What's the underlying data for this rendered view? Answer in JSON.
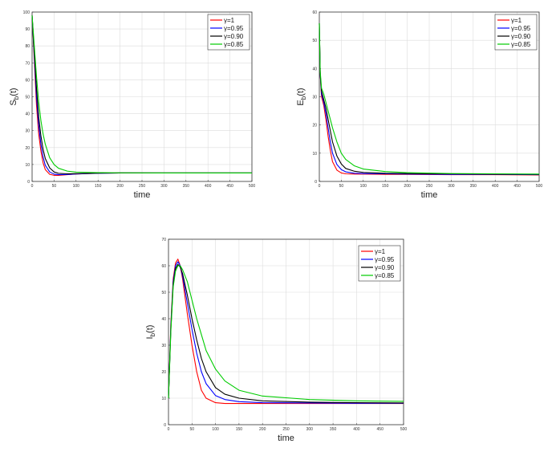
{
  "chart_data": [
    {
      "type": "line",
      "ylabel": "S_b(t)",
      "ylabel_main": "S",
      "ylabel_sub": "b",
      "ylabel_tail": "(t)",
      "xlabel": "time",
      "xlim": [
        0,
        500
      ],
      "ylim": [
        0,
        100
      ],
      "xticks": [
        "0",
        "50",
        "100",
        "150",
        "200",
        "250",
        "300",
        "350",
        "400",
        "450",
        "500"
      ],
      "yticks": [
        "0",
        "10",
        "20",
        "30",
        "40",
        "50",
        "60",
        "70",
        "80",
        "90",
        "100"
      ],
      "grid": true,
      "legend": "top-right",
      "series": [
        {
          "name": "γ=1",
          "color": "#ff0000",
          "x": [
            0,
            5,
            10,
            15,
            20,
            25,
            30,
            40,
            50,
            60,
            80,
            100,
            150,
            200,
            300,
            400,
            500
          ],
          "y": [
            98,
            72,
            45,
            28,
            18,
            11,
            7,
            4.2,
            3.6,
            3.6,
            4.0,
            4.4,
            4.9,
            5.0,
            5.0,
            5.0,
            5.0
          ]
        },
        {
          "name": "γ=0.95",
          "color": "#0000ff",
          "x": [
            0,
            5,
            10,
            15,
            20,
            25,
            30,
            40,
            50,
            60,
            80,
            100,
            150,
            200,
            300,
            400,
            500
          ],
          "y": [
            98,
            74,
            50,
            33,
            22,
            14.5,
            9.5,
            5.6,
            4.3,
            4.0,
            4.1,
            4.4,
            4.8,
            5.0,
            5.0,
            5.0,
            5.0
          ]
        },
        {
          "name": "γ=0.90",
          "color": "#000000",
          "x": [
            0,
            5,
            10,
            15,
            20,
            25,
            30,
            40,
            50,
            60,
            80,
            100,
            150,
            200,
            300,
            400,
            500
          ],
          "y": [
            98,
            76,
            55,
            38,
            27,
            19,
            13.5,
            8,
            5.6,
            4.8,
            4.5,
            4.6,
            4.9,
            5.0,
            5.0,
            5.0,
            5.0
          ]
        },
        {
          "name": "γ=0.85",
          "color": "#00cc00",
          "x": [
            0,
            5,
            10,
            15,
            20,
            25,
            30,
            40,
            50,
            60,
            80,
            100,
            150,
            200,
            300,
            400,
            500
          ],
          "y": [
            98,
            80,
            62,
            47,
            36,
            28,
            22,
            14,
            10,
            7.8,
            6.1,
            5.5,
            5.2,
            5.1,
            5.0,
            5.0,
            5.0
          ]
        }
      ]
    },
    {
      "type": "line",
      "ylabel": "E_b(t)",
      "ylabel_main": "E",
      "ylabel_sub": "b",
      "ylabel_tail": "(t)",
      "xlabel": "time",
      "xlim": [
        0,
        500
      ],
      "ylim": [
        0,
        60
      ],
      "xticks": [
        "0",
        "50",
        "100",
        "150",
        "200",
        "250",
        "300",
        "350",
        "400",
        "450",
        "500"
      ],
      "yticks": [
        "0",
        "10",
        "20",
        "30",
        "40",
        "50",
        "60"
      ],
      "grid": true,
      "legend": "top-right",
      "series": [
        {
          "name": "γ=1",
          "color": "#ff0000",
          "x": [
            0,
            2,
            5,
            10,
            15,
            20,
            25,
            30,
            40,
            50,
            60,
            80,
            100,
            150,
            200,
            300,
            400,
            500
          ],
          "y": [
            56,
            38,
            30,
            27,
            22,
            16,
            11,
            7,
            4,
            3,
            2.7,
            2.6,
            2.6,
            2.5,
            2.5,
            2.4,
            2.4,
            2.3
          ]
        },
        {
          "name": "γ=0.95",
          "color": "#0000ff",
          "x": [
            0,
            2,
            5,
            10,
            15,
            20,
            25,
            30,
            40,
            50,
            60,
            80,
            100,
            150,
            200,
            300,
            400,
            500
          ],
          "y": [
            56,
            38,
            31,
            28,
            24,
            19,
            14,
            10,
            6,
            4.2,
            3.4,
            2.9,
            2.8,
            2.7,
            2.6,
            2.5,
            2.5,
            2.4
          ]
        },
        {
          "name": "γ=0.90",
          "color": "#000000",
          "x": [
            0,
            2,
            5,
            10,
            15,
            20,
            25,
            30,
            40,
            50,
            60,
            80,
            100,
            150,
            200,
            300,
            400,
            500
          ],
          "y": [
            56,
            38,
            32,
            29,
            26,
            22,
            18,
            14,
            9,
            6.2,
            4.6,
            3.6,
            3.2,
            2.9,
            2.8,
            2.7,
            2.6,
            2.5
          ]
        },
        {
          "name": "γ=0.85",
          "color": "#00cc00",
          "x": [
            0,
            2,
            5,
            10,
            15,
            20,
            25,
            30,
            40,
            50,
            60,
            80,
            100,
            150,
            200,
            300,
            400,
            500
          ],
          "y": [
            56,
            39,
            33,
            31,
            28,
            25,
            22,
            19,
            14,
            10,
            7.8,
            5.5,
            4.4,
            3.5,
            3.1,
            2.8,
            2.7,
            2.6
          ]
        }
      ]
    },
    {
      "type": "line",
      "ylabel": "I_b(t)",
      "ylabel_main": "I",
      "ylabel_sub": "b",
      "ylabel_tail": "(t)",
      "xlabel": "time",
      "xlim": [
        0,
        500
      ],
      "ylim": [
        0,
        70
      ],
      "xticks": [
        "0",
        "50",
        "100",
        "150",
        "200",
        "250",
        "300",
        "350",
        "400",
        "450",
        "500"
      ],
      "yticks": [
        "0",
        "10",
        "20",
        "30",
        "40",
        "50",
        "60",
        "70"
      ],
      "grid": true,
      "legend": "top-right",
      "series": [
        {
          "name": "γ=1",
          "color": "#ff0000",
          "x": [
            0,
            5,
            10,
            15,
            20,
            25,
            30,
            40,
            50,
            60,
            70,
            80,
            100,
            120,
            150,
            200,
            300,
            400,
            500
          ],
          "y": [
            10,
            38,
            55,
            61,
            62.5,
            60,
            55,
            42,
            30,
            20,
            13,
            10,
            8.3,
            8,
            8,
            8,
            8,
            8,
            8
          ]
        },
        {
          "name": "γ=0.95",
          "color": "#0000ff",
          "x": [
            0,
            5,
            10,
            15,
            20,
            25,
            30,
            40,
            50,
            60,
            70,
            80,
            100,
            120,
            150,
            200,
            300,
            400,
            500
          ],
          "y": [
            10,
            37,
            54,
            60,
            61.5,
            60,
            56,
            46,
            36,
            27,
            20,
            15.5,
            11,
            9.5,
            8.7,
            8.3,
            8.2,
            8.1,
            8.1
          ]
        },
        {
          "name": "γ=0.90",
          "color": "#000000",
          "x": [
            0,
            5,
            10,
            15,
            20,
            25,
            30,
            40,
            50,
            60,
            70,
            80,
            100,
            120,
            150,
            200,
            300,
            400,
            500
          ],
          "y": [
            10,
            36,
            53,
            59,
            60.5,
            59.5,
            57,
            49,
            40,
            32,
            25,
            20,
            14,
            11.5,
            10,
            9,
            8.5,
            8.3,
            8.2
          ]
        },
        {
          "name": "γ=0.85",
          "color": "#00cc00",
          "x": [
            0,
            5,
            10,
            15,
            20,
            25,
            30,
            40,
            50,
            60,
            70,
            80,
            100,
            120,
            150,
            200,
            300,
            400,
            500
          ],
          "y": [
            10,
            35,
            52,
            58,
            60,
            60,
            58.5,
            54,
            47,
            40,
            34,
            28,
            21,
            16.5,
            13,
            10.8,
            9.5,
            9,
            8.8
          ]
        }
      ]
    }
  ]
}
